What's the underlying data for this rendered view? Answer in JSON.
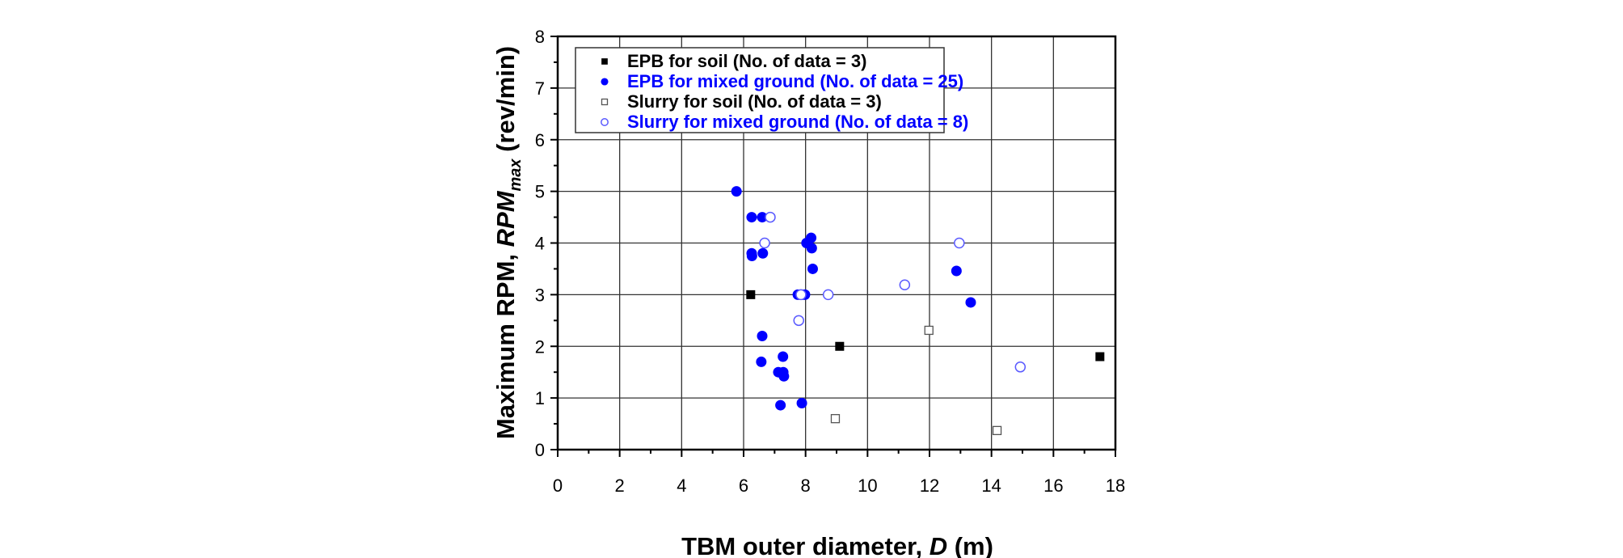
{
  "chart_data": {
    "type": "scatter",
    "xlabel": {
      "prefix": "TBM outer diameter, ",
      "var": "D",
      "suffix": " (m)"
    },
    "ylabel": {
      "prefix": "Maximum RPM, ",
      "var": "RPM",
      "sub": "max",
      "suffix": " (rev/min)"
    },
    "xlim": [
      0,
      18
    ],
    "ylim": [
      0,
      8
    ],
    "xticks": [
      "0",
      "2",
      "4",
      "6",
      "8",
      "10",
      "12",
      "14",
      "16",
      "18"
    ],
    "yticks": [
      "0",
      "1",
      "2",
      "3",
      "4",
      "5",
      "6",
      "7",
      "8"
    ],
    "grid": true,
    "legend_position": "top-left",
    "colors": {
      "black": "#000000",
      "blue": "#0000ff",
      "open_blue": "#5a5aff",
      "open_gray": "#555555"
    },
    "series": [
      {
        "name": "EPB for soil (No. of data = 3)",
        "marker": "square-filled",
        "color": "#000000",
        "points": [
          [
            6.23,
            3.0
          ],
          [
            9.1,
            2.0
          ],
          [
            17.5,
            1.8
          ]
        ]
      },
      {
        "name": "EPB for mixed ground (No. of data = 25)",
        "marker": "circle-filled",
        "color": "#0000ff",
        "points": [
          [
            5.77,
            5.0
          ],
          [
            6.26,
            4.5
          ],
          [
            6.6,
            4.5
          ],
          [
            6.26,
            3.8
          ],
          [
            6.27,
            3.75
          ],
          [
            6.62,
            3.8
          ],
          [
            8.18,
            4.1
          ],
          [
            8.03,
            4.0
          ],
          [
            8.2,
            3.9
          ],
          [
            8.23,
            3.5
          ],
          [
            7.75,
            3.0
          ],
          [
            7.82,
            3.0
          ],
          [
            7.9,
            3.0
          ],
          [
            7.98,
            3.0
          ],
          [
            6.6,
            2.2
          ],
          [
            7.27,
            1.8
          ],
          [
            6.57,
            1.7
          ],
          [
            7.12,
            1.5
          ],
          [
            7.28,
            1.5
          ],
          [
            7.3,
            1.42
          ],
          [
            7.19,
            0.86
          ],
          [
            7.88,
            0.9
          ],
          [
            12.87,
            3.46
          ],
          [
            13.33,
            2.85
          ],
          [
            7.86,
            3.0
          ]
        ]
      },
      {
        "name": "Slurry for soil (No. of data = 3)",
        "marker": "square-open",
        "color": "#555555",
        "points": [
          [
            8.96,
            0.6
          ],
          [
            11.98,
            2.31
          ],
          [
            14.18,
            0.37
          ]
        ]
      },
      {
        "name": "Slurry for mixed ground (No. of data = 8)",
        "marker": "circle-open",
        "color": "#5a5aff",
        "points": [
          [
            6.86,
            4.5
          ],
          [
            6.68,
            4.0
          ],
          [
            8.73,
            3.0
          ],
          [
            7.78,
            2.5
          ],
          [
            11.2,
            3.19
          ],
          [
            12.96,
            4.0
          ],
          [
            14.93,
            1.6
          ],
          [
            7.85,
            3.0
          ]
        ]
      }
    ]
  }
}
